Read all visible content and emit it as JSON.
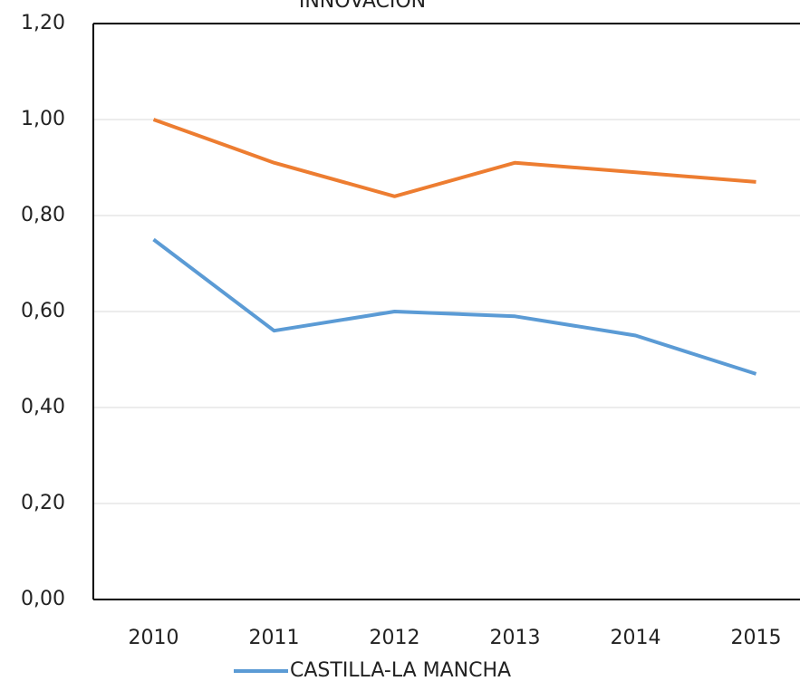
{
  "chart_data": {
    "type": "line",
    "title": "INNOVACIÓN",
    "categories": [
      "2010",
      "2011",
      "2012",
      "2013",
      "2014",
      "2015"
    ],
    "series": [
      {
        "name": "CASTILLA-LA MANCHA",
        "color": "#5b9bd5",
        "values": [
          0.75,
          0.56,
          0.6,
          0.59,
          0.55,
          0.47
        ]
      },
      {
        "color": "#ed7d31",
        "values": [
          1.0,
          0.91,
          0.84,
          0.91,
          0.89,
          0.87
        ]
      }
    ],
    "ylim": [
      0,
      1.2
    ],
    "yticks": [
      {
        "value": 0,
        "label": "0,00"
      },
      {
        "value": 0.2,
        "label": "0,20"
      },
      {
        "value": 0.4,
        "label": "0,40"
      },
      {
        "value": 0.6,
        "label": "0,60"
      },
      {
        "value": 0.8,
        "label": "0,80"
      },
      {
        "value": 1.0,
        "label": "1,00"
      },
      {
        "value": 1.2,
        "label": "1,20"
      }
    ],
    "grid": true
  }
}
